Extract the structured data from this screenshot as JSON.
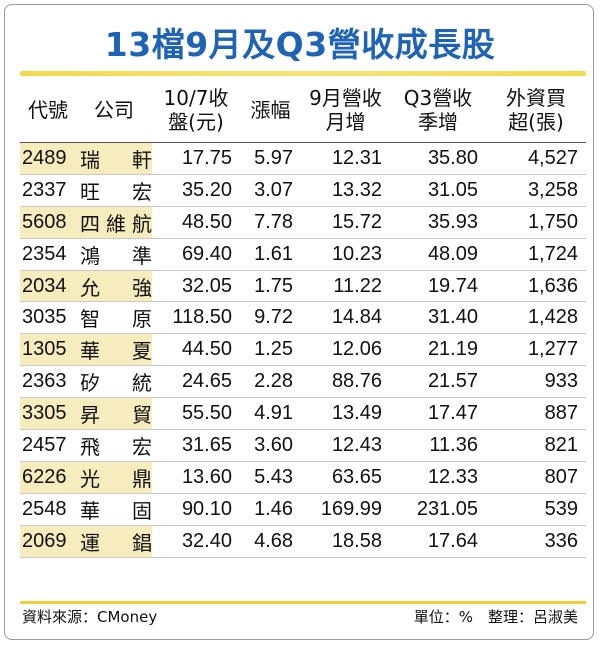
{
  "title": "13檔9月及Q3營收成長股",
  "headers": [
    [
      "代號"
    ],
    [
      "公司"
    ],
    [
      "10/7收",
      "盤(元)"
    ],
    [
      "漲幅"
    ],
    [
      "9月營收",
      "月增"
    ],
    [
      "Q3營收",
      "季增"
    ],
    [
      "外資買",
      "超(張)"
    ]
  ],
  "rows": [
    [
      "2489",
      "瑞軒",
      "17.75",
      "5.97",
      "12.31",
      "35.80",
      "4,527"
    ],
    [
      "2337",
      "旺宏",
      "35.20",
      "3.07",
      "13.32",
      "31.05",
      "3,258"
    ],
    [
      "5608",
      "四維航",
      "48.50",
      "7.78",
      "15.72",
      "35.93",
      "1,750"
    ],
    [
      "2354",
      "鴻準",
      "69.40",
      "1.61",
      "10.23",
      "48.09",
      "1,724"
    ],
    [
      "2034",
      "允強",
      "32.05",
      "1.75",
      "11.22",
      "19.74",
      "1,636"
    ],
    [
      "3035",
      "智原",
      "118.50",
      "9.72",
      "14.84",
      "31.40",
      "1,428"
    ],
    [
      "1305",
      "華夏",
      "44.50",
      "1.25",
      "12.06",
      "21.19",
      "1,277"
    ],
    [
      "2363",
      "矽統",
      "24.65",
      "2.28",
      "88.76",
      "21.57",
      "933"
    ],
    [
      "3305",
      "昇貿",
      "55.50",
      "4.91",
      "13.49",
      "17.47",
      "887"
    ],
    [
      "2457",
      "飛宏",
      "31.65",
      "3.60",
      "12.43",
      "11.36",
      "821"
    ],
    [
      "6226",
      "光鼎",
      "13.60",
      "5.43",
      "63.65",
      "12.33",
      "807"
    ],
    [
      "2548",
      "華固",
      "90.10",
      "1.46",
      "169.99",
      "231.05",
      "539"
    ],
    [
      "2069",
      "運錩",
      "32.40",
      "4.68",
      "18.58",
      "17.64",
      "336"
    ]
  ],
  "footer": {
    "source": "資料來源：CMoney",
    "unit_credit": "單位：%　整理：呂淑美"
  },
  "colors": {
    "title": "#1e63b5",
    "accent_line": "#f3d94b",
    "row_shade": "#f7ecbd"
  }
}
